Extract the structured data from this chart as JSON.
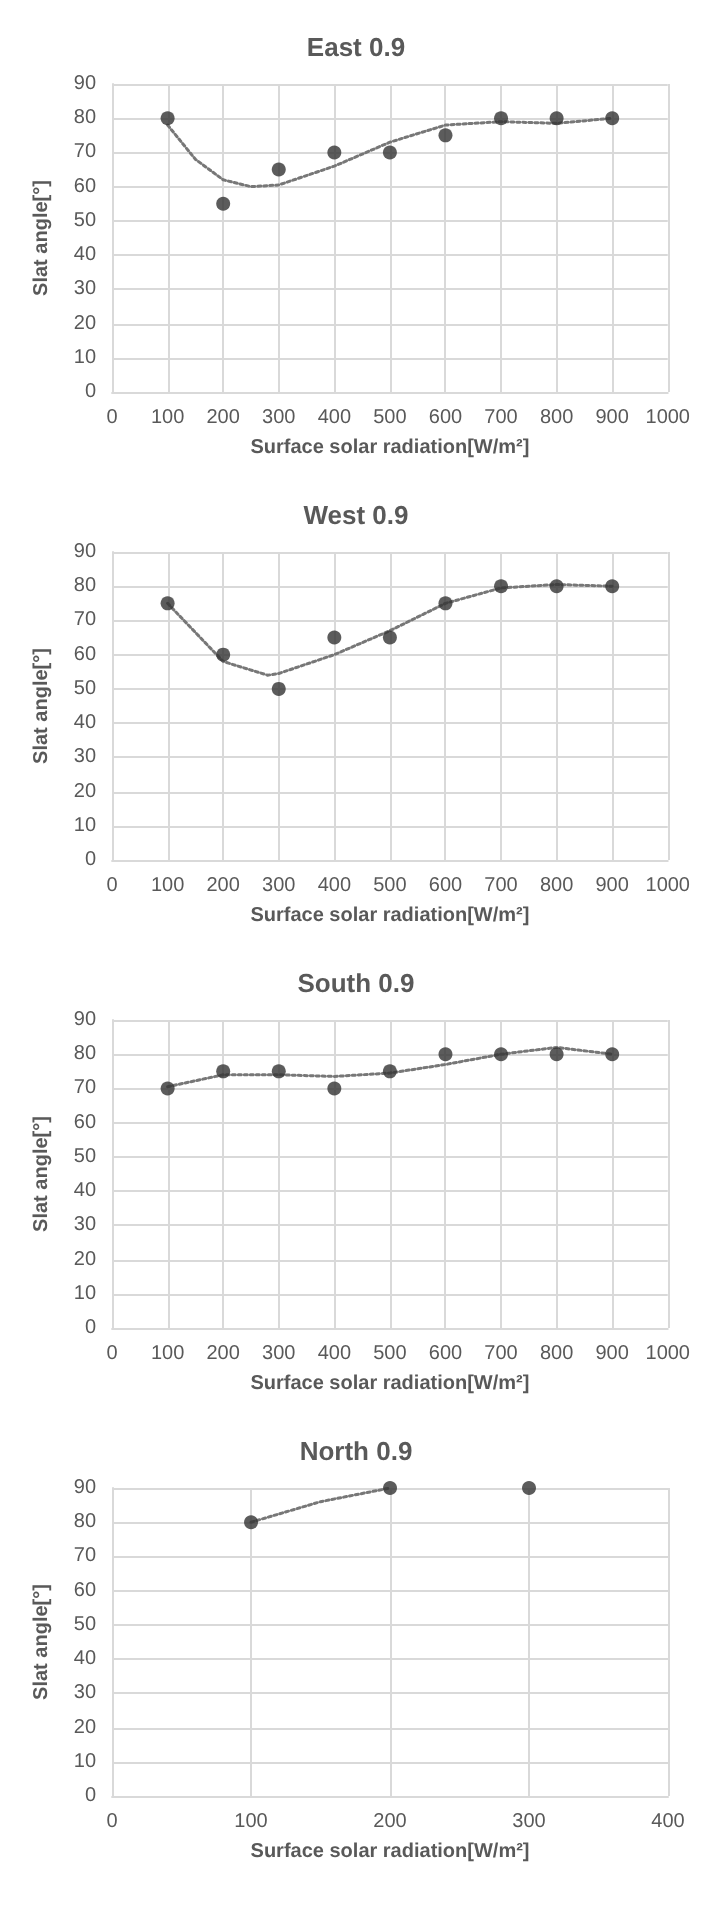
{
  "chart_data": [
    {
      "type": "scatter",
      "title": "East 0.9",
      "xlabel": "Surface solar radiation[W/m²]",
      "ylabel": "Slat angle[°]",
      "xlim": [
        0,
        1000
      ],
      "xticks": [
        0,
        100,
        200,
        300,
        400,
        500,
        600,
        700,
        800,
        900,
        1000
      ],
      "ylim": [
        0,
        90
      ],
      "yticks": [
        0,
        10,
        20,
        30,
        40,
        50,
        60,
        70,
        80,
        90
      ],
      "grid": true,
      "marker": "circle",
      "series": [
        {
          "color": "#333333",
          "x": [
            100,
            200,
            300,
            400,
            500,
            600,
            700,
            800,
            900
          ],
          "values": [
            80,
            55,
            65,
            70,
            70,
            75,
            80,
            80,
            80
          ]
        },
        {
          "type": "line",
          "color": "#777777",
          "line_style": "dotted",
          "marker": "none",
          "x": [
            100,
            150,
            200,
            250,
            300,
            400,
            500,
            600,
            700,
            800,
            900
          ],
          "values": [
            78,
            68,
            62,
            60,
            60.5,
            66,
            73,
            78,
            79,
            78.5,
            80
          ]
        }
      ]
    },
    {
      "type": "scatter",
      "title": "West 0.9",
      "xlabel": "Surface solar radiation[W/m²]",
      "ylabel": "Slat angle[°]",
      "xlim": [
        0,
        1000
      ],
      "xticks": [
        0,
        100,
        200,
        300,
        400,
        500,
        600,
        700,
        800,
        900,
        1000
      ],
      "ylim": [
        0,
        90
      ],
      "yticks": [
        0,
        10,
        20,
        30,
        40,
        50,
        60,
        70,
        80,
        90
      ],
      "grid": true,
      "marker": "circle",
      "series": [
        {
          "color": "#333333",
          "x": [
            100,
            200,
            300,
            400,
            500,
            600,
            700,
            800,
            900
          ],
          "values": [
            75,
            60,
            50,
            65,
            65,
            75,
            80,
            80,
            80
          ]
        },
        {
          "type": "line",
          "color": "#777777",
          "line_style": "dotted",
          "marker": "none",
          "x": [
            100,
            200,
            280,
            300,
            400,
            500,
            600,
            700,
            800,
            900
          ],
          "values": [
            75,
            58,
            54,
            54.5,
            60,
            67,
            75,
            79.5,
            80.5,
            80
          ]
        }
      ]
    },
    {
      "type": "scatter",
      "title": "South 0.9",
      "xlabel": "Surface solar radiation[W/m²]",
      "ylabel": "Slat angle[°]",
      "xlim": [
        0,
        1000
      ],
      "xticks": [
        0,
        100,
        200,
        300,
        400,
        500,
        600,
        700,
        800,
        900,
        1000
      ],
      "ylim": [
        0,
        90
      ],
      "yticks": [
        0,
        10,
        20,
        30,
        40,
        50,
        60,
        70,
        80,
        90
      ],
      "grid": true,
      "marker": "circle",
      "series": [
        {
          "color": "#333333",
          "x": [
            100,
            200,
            300,
            400,
            500,
            600,
            700,
            800,
            900
          ],
          "values": [
            70,
            75,
            75,
            70,
            75,
            80,
            80,
            80,
            80
          ]
        },
        {
          "type": "line",
          "color": "#777777",
          "line_style": "dotted",
          "marker": "none",
          "x": [
            100,
            200,
            300,
            400,
            500,
            600,
            700,
            800,
            900
          ],
          "values": [
            70.5,
            74,
            74,
            73.5,
            74.5,
            77,
            80,
            82,
            80
          ]
        }
      ]
    },
    {
      "type": "scatter",
      "title": "North 0.9",
      "xlabel": "Surface solar radiation[W/m²]",
      "ylabel": "Slat angle[°]",
      "xlim": [
        0,
        400
      ],
      "xticks": [
        0,
        100,
        200,
        300,
        400
      ],
      "ylim": [
        0,
        90
      ],
      "yticks": [
        0,
        10,
        20,
        30,
        40,
        50,
        60,
        70,
        80,
        90
      ],
      "grid": true,
      "marker": "circle",
      "series": [
        {
          "color": "#333333",
          "x": [
            100,
            200,
            300
          ],
          "values": [
            80,
            90,
            90
          ]
        },
        {
          "type": "line",
          "color": "#777777",
          "line_style": "dotted",
          "marker": "none",
          "x": [
            100,
            150,
            200
          ],
          "values": [
            80,
            86,
            90
          ]
        }
      ]
    }
  ]
}
